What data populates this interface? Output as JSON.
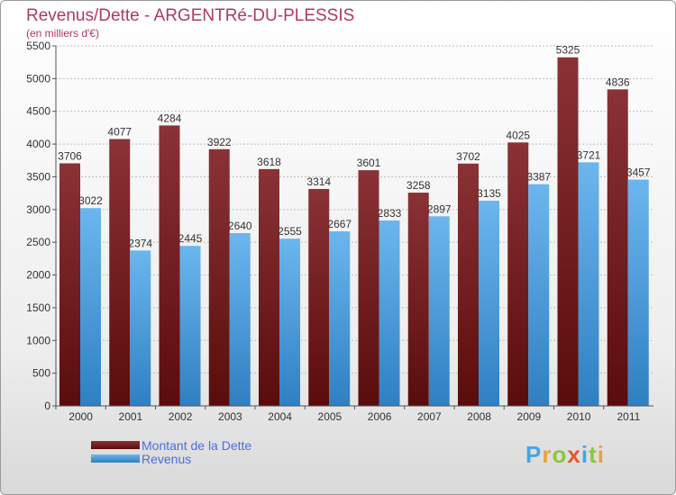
{
  "chart_data": {
    "type": "bar",
    "title": "Revenus/Dette - ARGENTRé-DU-PLESSIS",
    "subtitle": "(en milliers d'€)",
    "categories": [
      "2000",
      "2001",
      "2002",
      "2003",
      "2004",
      "2005",
      "2006",
      "2007",
      "2008",
      "2009",
      "2010",
      "2011"
    ],
    "series": [
      {
        "name": "Montant de la Dette",
        "values": [
          3706,
          4077,
          4284,
          3922,
          3618,
          3314,
          3601,
          3258,
          3702,
          4025,
          5325,
          4836
        ]
      },
      {
        "name": "Revenus",
        "values": [
          3022,
          2374,
          2445,
          2640,
          2555,
          2667,
          2833,
          2897,
          3135,
          3387,
          3721,
          3457
        ]
      }
    ],
    "yticks": [
      "0",
      "500",
      "1000",
      "1500",
      "2000",
      "2500",
      "3000",
      "3500",
      "4000",
      "4500",
      "5000",
      "5500"
    ],
    "ylim": [
      0,
      5500
    ],
    "grid": true,
    "legend_position": "bottom-left",
    "colors": {
      "dette_top": "#8a3236",
      "dette_bottom": "#5a0c0c",
      "revenus_top": "#6bb6ee",
      "revenus_bottom": "#2f7fc2",
      "title": "#b03a5e",
      "legend_text": "#4a6ee0"
    }
  },
  "logo": {
    "letters": [
      "P",
      "r",
      "o",
      "x",
      "i",
      "t",
      "i"
    ],
    "colors": [
      "#4aa3df",
      "#e8a33d",
      "#8cc63f",
      "#e4572e",
      "#4aa3df",
      "#8cc63f",
      "#e8a33d"
    ]
  }
}
